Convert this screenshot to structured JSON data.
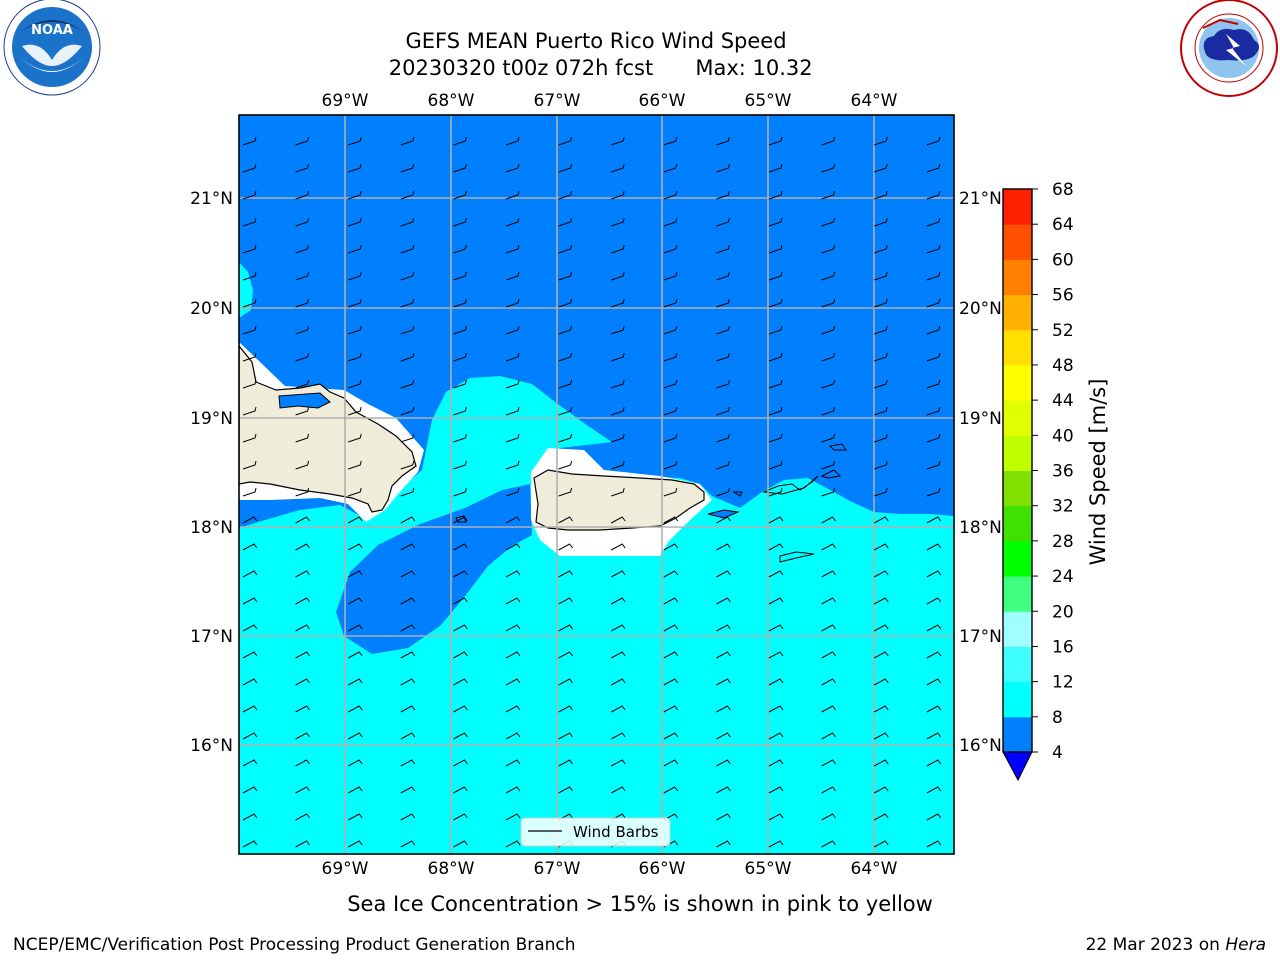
{
  "title": {
    "line1": "GEFS MEAN Puerto Rico Wind Speed",
    "line2_run": "20230320 t00z 072h fcst",
    "line2_max": "Max: 10.32"
  },
  "logos": {
    "noaa": {
      "text": "NOAA",
      "ring_text": "NATIONAL OCEANIC AND ATMOSPHERIC ADMINISTRATION · U.S. DEPARTMENT OF COMMERCE"
    },
    "nws": {
      "ring_text": "NATIONAL WEATHER SERVICE"
    }
  },
  "map": {
    "lon_ticks": [
      "69°W",
      "68°W",
      "67°W",
      "66°W",
      "65°W",
      "64°W"
    ],
    "lat_ticks": [
      "21°N",
      "20°N",
      "19°N",
      "18°N",
      "17°N",
      "16°N"
    ],
    "legend_label": "Wind Barbs",
    "colors": {
      "level_4_8": "#0080ff",
      "level_8_12": "#00ffff",
      "land": "#efedd9",
      "no_data": "#ffffff",
      "grid": "#b0b0b0"
    }
  },
  "colorbar": {
    "label": "Wind Speed [m/s]",
    "ticks": [
      "4",
      "8",
      "12",
      "16",
      "20",
      "24",
      "28",
      "32",
      "36",
      "40",
      "44",
      "48",
      "52",
      "56",
      "60",
      "64",
      "68"
    ],
    "colors": [
      "#0080ff",
      "#00ffff",
      "#40ffff",
      "#a0ffff",
      "#40ff80",
      "#00ff00",
      "#40e000",
      "#80e000",
      "#c0ff00",
      "#e0ff00",
      "#ffff00",
      "#ffe000",
      "#ffb000",
      "#ff8000",
      "#ff5000",
      "#ff2000",
      "#ff0000"
    ],
    "underflow_color": "#0000ff"
  },
  "footer": {
    "note": "Sea Ice Concentration > 15% is shown in pink to yellow",
    "left": "NCEP/EMC/Verification Post Processing Product Generation Branch",
    "date": "22 Mar 2023 on ",
    "host": "Hera"
  }
}
